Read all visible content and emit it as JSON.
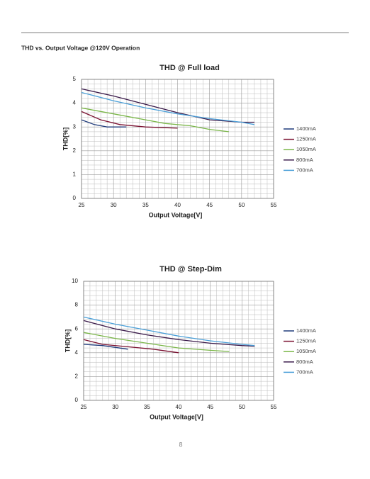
{
  "header": {
    "title": "THD vs. Output Voltage @120V Operation"
  },
  "chart_data": [
    {
      "type": "line",
      "title": "THD @ Full load",
      "xlabel": "Output Voltage[V]",
      "ylabel": "THD[%]",
      "xlim": [
        25,
        55
      ],
      "xticks": [
        25,
        30,
        35,
        40,
        45,
        50,
        55
      ],
      "ylim": [
        0,
        5
      ],
      "yticks": [
        0,
        1,
        2,
        3,
        4,
        5
      ],
      "grid": "minor",
      "series": [
        {
          "name": "1400mA",
          "color": "#1f3a7a",
          "x": [
            25,
            27,
            29,
            32
          ],
          "values": [
            3.3,
            3.1,
            3.0,
            3.0
          ]
        },
        {
          "name": "1250mA",
          "color": "#7a1030",
          "x": [
            25,
            28,
            31,
            35,
            40
          ],
          "values": [
            3.65,
            3.3,
            3.1,
            3.0,
            2.95
          ]
        },
        {
          "name": "1050mA",
          "color": "#7ab648",
          "x": [
            25,
            30,
            35,
            38,
            42,
            45,
            48
          ],
          "values": [
            3.8,
            3.55,
            3.3,
            3.15,
            3.05,
            2.9,
            2.8
          ]
        },
        {
          "name": "800mA",
          "color": "#3a1a4a",
          "x": [
            25,
            30,
            35,
            40,
            45,
            50,
            52
          ],
          "values": [
            4.6,
            4.3,
            3.95,
            3.6,
            3.3,
            3.2,
            3.2
          ]
        },
        {
          "name": "700mA",
          "color": "#4a9fd8",
          "x": [
            25,
            30,
            35,
            40,
            45,
            50,
            52
          ],
          "values": [
            4.45,
            4.1,
            3.8,
            3.55,
            3.35,
            3.2,
            3.1
          ]
        }
      ]
    },
    {
      "type": "line",
      "title": "THD @ Step-Dim",
      "xlabel": "Output Voltage[V]",
      "ylabel": "THD[%]",
      "xlim": [
        25,
        55
      ],
      "xticks": [
        25,
        30,
        35,
        40,
        45,
        50,
        55
      ],
      "ylim": [
        0,
        10
      ],
      "yticks": [
        0,
        2,
        4,
        6,
        8,
        10
      ],
      "grid": "minor",
      "series": [
        {
          "name": "1400mA",
          "color": "#1f3a7a",
          "x": [
            25,
            28,
            32
          ],
          "values": [
            4.7,
            4.6,
            4.3
          ]
        },
        {
          "name": "1250mA",
          "color": "#7a1030",
          "x": [
            25,
            28,
            32,
            36,
            40
          ],
          "values": [
            5.1,
            4.7,
            4.5,
            4.3,
            4.0
          ]
        },
        {
          "name": "1050mA",
          "color": "#7ab648",
          "x": [
            25,
            30,
            35,
            40,
            45,
            48
          ],
          "values": [
            5.7,
            5.2,
            4.8,
            4.4,
            4.2,
            4.1
          ]
        },
        {
          "name": "800mA",
          "color": "#3a1a4a",
          "x": [
            25,
            30,
            35,
            40,
            45,
            50,
            52
          ],
          "values": [
            6.7,
            6.0,
            5.5,
            5.1,
            4.8,
            4.6,
            4.55
          ]
        },
        {
          "name": "700mA",
          "color": "#4a9fd8",
          "x": [
            25,
            30,
            35,
            40,
            45,
            50,
            52
          ],
          "values": [
            7.0,
            6.4,
            5.9,
            5.4,
            5.0,
            4.7,
            4.6
          ]
        }
      ]
    }
  ],
  "page_number": "8"
}
